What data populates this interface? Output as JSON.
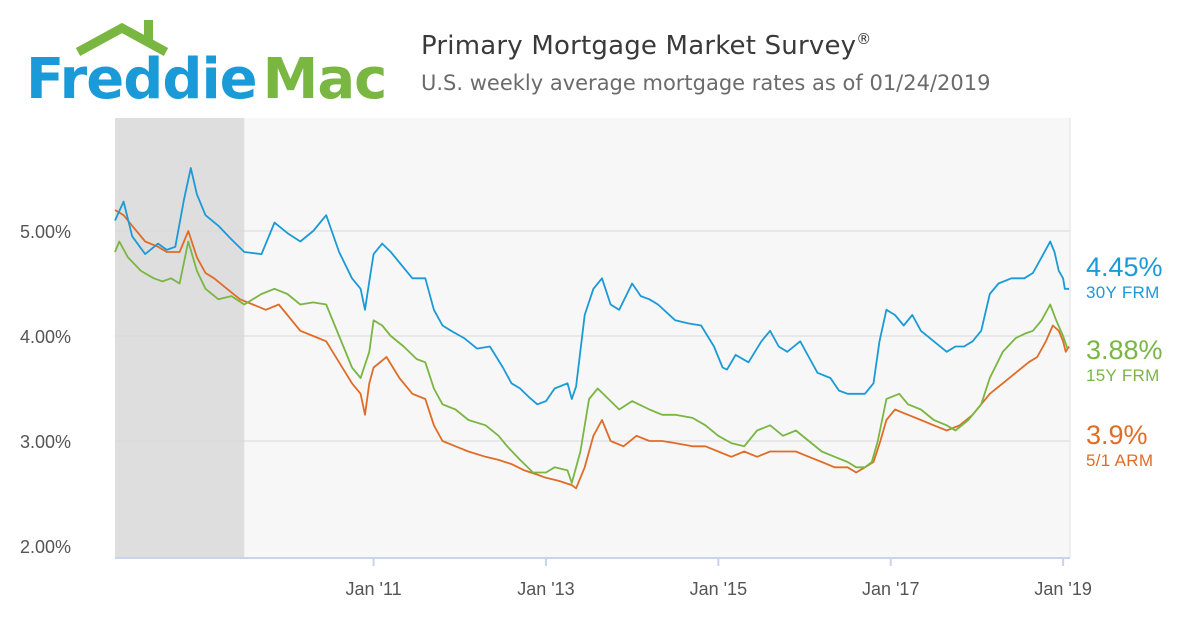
{
  "logo": {
    "text_part1": "Freddie",
    "text_part2": "Mac",
    "colors": {
      "freddie": "#1a9ad6",
      "mac": "#7ab642",
      "roof": "#7ab642"
    }
  },
  "header": {
    "title": "Primary Mortgage Market Survey",
    "title_mark": "®",
    "subtitle": "U.S. weekly average mortgage rates as of 01/24/2019"
  },
  "chart_data": {
    "type": "line",
    "title": "Primary Mortgage Market Survey",
    "subtitle": "U.S. weekly average mortgage rates as of 01/24/2019",
    "xlabel": "",
    "ylabel": "",
    "xlim": [
      2008.0,
      2019.08
    ],
    "ylim": [
      2.0,
      6.0
    ],
    "yticks": [
      {
        "value": 2.0,
        "label": "2.00%"
      },
      {
        "value": 3.0,
        "label": "3.00%"
      },
      {
        "value": 4.0,
        "label": "4.00%"
      },
      {
        "value": 5.0,
        "label": "5.00%"
      }
    ],
    "xticks": [
      {
        "value": 2011.0,
        "label": "Jan '11"
      },
      {
        "value": 2013.0,
        "label": "Jan '13"
      },
      {
        "value": 2015.0,
        "label": "Jan '15"
      },
      {
        "value": 2017.0,
        "label": "Jan '17"
      },
      {
        "value": 2019.0,
        "label": "Jan '19"
      }
    ],
    "shaded_period": [
      2008.0,
      2009.5
    ],
    "grid": true,
    "legend": "right-end labels",
    "series": [
      {
        "name": "30Y FRM",
        "end_label": "4.45%",
        "color": "#1a9ad6",
        "points": [
          [
            2008.0,
            5.1
          ],
          [
            2008.1,
            5.28
          ],
          [
            2008.2,
            4.95
          ],
          [
            2008.35,
            4.78
          ],
          [
            2008.5,
            4.88
          ],
          [
            2008.6,
            4.82
          ],
          [
            2008.7,
            4.85
          ],
          [
            2008.8,
            5.3
          ],
          [
            2008.88,
            5.6
          ],
          [
            2008.95,
            5.35
          ],
          [
            2009.05,
            5.15
          ],
          [
            2009.2,
            5.05
          ],
          [
            2009.35,
            4.92
          ],
          [
            2009.5,
            4.8
          ],
          [
            2009.7,
            4.78
          ],
          [
            2009.85,
            5.08
          ],
          [
            2010.0,
            4.98
          ],
          [
            2010.15,
            4.9
          ],
          [
            2010.3,
            5.0
          ],
          [
            2010.45,
            5.15
          ],
          [
            2010.6,
            4.8
          ],
          [
            2010.75,
            4.55
          ],
          [
            2010.85,
            4.45
          ],
          [
            2010.9,
            4.25
          ],
          [
            2010.95,
            4.52
          ],
          [
            2011.0,
            4.78
          ],
          [
            2011.1,
            4.88
          ],
          [
            2011.2,
            4.8
          ],
          [
            2011.3,
            4.7
          ],
          [
            2011.45,
            4.55
          ],
          [
            2011.6,
            4.55
          ],
          [
            2011.7,
            4.25
          ],
          [
            2011.8,
            4.1
          ],
          [
            2011.9,
            4.05
          ],
          [
            2012.05,
            3.98
          ],
          [
            2012.2,
            3.88
          ],
          [
            2012.35,
            3.9
          ],
          [
            2012.5,
            3.7
          ],
          [
            2012.6,
            3.55
          ],
          [
            2012.7,
            3.5
          ],
          [
            2012.8,
            3.42
          ],
          [
            2012.9,
            3.35
          ],
          [
            2013.0,
            3.38
          ],
          [
            2013.1,
            3.5
          ],
          [
            2013.25,
            3.55
          ],
          [
            2013.3,
            3.4
          ],
          [
            2013.35,
            3.52
          ],
          [
            2013.45,
            4.2
          ],
          [
            2013.55,
            4.45
          ],
          [
            2013.65,
            4.55
          ],
          [
            2013.75,
            4.3
          ],
          [
            2013.85,
            4.25
          ],
          [
            2014.0,
            4.5
          ],
          [
            2014.1,
            4.38
          ],
          [
            2014.2,
            4.35
          ],
          [
            2014.3,
            4.3
          ],
          [
            2014.5,
            4.15
          ],
          [
            2014.65,
            4.12
          ],
          [
            2014.8,
            4.1
          ],
          [
            2014.95,
            3.9
          ],
          [
            2015.05,
            3.7
          ],
          [
            2015.1,
            3.68
          ],
          [
            2015.2,
            3.82
          ],
          [
            2015.35,
            3.75
          ],
          [
            2015.5,
            3.95
          ],
          [
            2015.6,
            4.05
          ],
          [
            2015.7,
            3.9
          ],
          [
            2015.8,
            3.85
          ],
          [
            2015.95,
            3.95
          ],
          [
            2016.05,
            3.8
          ],
          [
            2016.15,
            3.65
          ],
          [
            2016.3,
            3.6
          ],
          [
            2016.4,
            3.48
          ],
          [
            2016.5,
            3.45
          ],
          [
            2016.6,
            3.45
          ],
          [
            2016.7,
            3.45
          ],
          [
            2016.8,
            3.55
          ],
          [
            2016.87,
            3.95
          ],
          [
            2016.95,
            4.25
          ],
          [
            2017.05,
            4.2
          ],
          [
            2017.15,
            4.1
          ],
          [
            2017.25,
            4.2
          ],
          [
            2017.35,
            4.05
          ],
          [
            2017.5,
            3.95
          ],
          [
            2017.65,
            3.85
          ],
          [
            2017.75,
            3.9
          ],
          [
            2017.85,
            3.9
          ],
          [
            2017.95,
            3.95
          ],
          [
            2018.05,
            4.05
          ],
          [
            2018.15,
            4.4
          ],
          [
            2018.25,
            4.5
          ],
          [
            2018.4,
            4.55
          ],
          [
            2018.55,
            4.55
          ],
          [
            2018.65,
            4.6
          ],
          [
            2018.75,
            4.75
          ],
          [
            2018.85,
            4.9
          ],
          [
            2018.9,
            4.8
          ],
          [
            2018.95,
            4.62
          ],
          [
            2019.0,
            4.55
          ],
          [
            2019.02,
            4.45
          ],
          [
            2019.07,
            4.45
          ]
        ]
      },
      {
        "name": "15Y FRM",
        "end_label": "3.88%",
        "color": "#7ab642",
        "points": [
          [
            2008.0,
            4.8
          ],
          [
            2008.05,
            4.9
          ],
          [
            2008.15,
            4.75
          ],
          [
            2008.3,
            4.62
          ],
          [
            2008.45,
            4.55
          ],
          [
            2008.55,
            4.52
          ],
          [
            2008.65,
            4.55
          ],
          [
            2008.75,
            4.5
          ],
          [
            2008.85,
            4.9
          ],
          [
            2008.95,
            4.62
          ],
          [
            2009.05,
            4.45
          ],
          [
            2009.2,
            4.35
          ],
          [
            2009.35,
            4.38
          ],
          [
            2009.5,
            4.3
          ],
          [
            2009.7,
            4.4
          ],
          [
            2009.85,
            4.45
          ],
          [
            2010.0,
            4.4
          ],
          [
            2010.15,
            4.3
          ],
          [
            2010.3,
            4.32
          ],
          [
            2010.45,
            4.3
          ],
          [
            2010.6,
            4.0
          ],
          [
            2010.75,
            3.7
          ],
          [
            2010.85,
            3.6
          ],
          [
            2010.95,
            3.85
          ],
          [
            2011.0,
            4.15
          ],
          [
            2011.1,
            4.1
          ],
          [
            2011.2,
            4.0
          ],
          [
            2011.35,
            3.9
          ],
          [
            2011.5,
            3.78
          ],
          [
            2011.6,
            3.75
          ],
          [
            2011.7,
            3.5
          ],
          [
            2011.8,
            3.35
          ],
          [
            2011.95,
            3.3
          ],
          [
            2012.1,
            3.2
          ],
          [
            2012.3,
            3.15
          ],
          [
            2012.45,
            3.05
          ],
          [
            2012.55,
            2.95
          ],
          [
            2012.7,
            2.82
          ],
          [
            2012.85,
            2.7
          ],
          [
            2013.0,
            2.7
          ],
          [
            2013.1,
            2.75
          ],
          [
            2013.25,
            2.72
          ],
          [
            2013.3,
            2.6
          ],
          [
            2013.4,
            2.9
          ],
          [
            2013.5,
            3.4
          ],
          [
            2013.6,
            3.5
          ],
          [
            2013.7,
            3.42
          ],
          [
            2013.85,
            3.3
          ],
          [
            2014.0,
            3.38
          ],
          [
            2014.2,
            3.3
          ],
          [
            2014.35,
            3.25
          ],
          [
            2014.5,
            3.25
          ],
          [
            2014.7,
            3.22
          ],
          [
            2014.85,
            3.15
          ],
          [
            2015.0,
            3.05
          ],
          [
            2015.15,
            2.98
          ],
          [
            2015.3,
            2.95
          ],
          [
            2015.45,
            3.1
          ],
          [
            2015.6,
            3.15
          ],
          [
            2015.75,
            3.05
          ],
          [
            2015.9,
            3.1
          ],
          [
            2016.05,
            3.0
          ],
          [
            2016.2,
            2.9
          ],
          [
            2016.35,
            2.85
          ],
          [
            2016.5,
            2.8
          ],
          [
            2016.6,
            2.75
          ],
          [
            2016.7,
            2.75
          ],
          [
            2016.78,
            2.8
          ],
          [
            2016.85,
            3.0
          ],
          [
            2016.95,
            3.4
          ],
          [
            2017.1,
            3.45
          ],
          [
            2017.2,
            3.35
          ],
          [
            2017.35,
            3.3
          ],
          [
            2017.5,
            3.2
          ],
          [
            2017.65,
            3.15
          ],
          [
            2017.75,
            3.1
          ],
          [
            2017.9,
            3.2
          ],
          [
            2018.05,
            3.35
          ],
          [
            2018.15,
            3.6
          ],
          [
            2018.3,
            3.85
          ],
          [
            2018.45,
            3.98
          ],
          [
            2018.55,
            4.02
          ],
          [
            2018.65,
            4.05
          ],
          [
            2018.75,
            4.15
          ],
          [
            2018.85,
            4.3
          ],
          [
            2018.92,
            4.15
          ],
          [
            2019.0,
            4.0
          ],
          [
            2019.05,
            3.88
          ]
        ]
      },
      {
        "name": "5/1 ARM",
        "end_label": "3.9%",
        "color": "#e06c27",
        "points": [
          [
            2008.0,
            5.2
          ],
          [
            2008.1,
            5.15
          ],
          [
            2008.2,
            5.05
          ],
          [
            2008.35,
            4.9
          ],
          [
            2008.5,
            4.85
          ],
          [
            2008.6,
            4.8
          ],
          [
            2008.75,
            4.8
          ],
          [
            2008.85,
            5.0
          ],
          [
            2008.95,
            4.75
          ],
          [
            2009.05,
            4.6
          ],
          [
            2009.15,
            4.55
          ],
          [
            2009.3,
            4.45
          ],
          [
            2009.45,
            4.35
          ],
          [
            2009.6,
            4.3
          ],
          [
            2009.75,
            4.25
          ],
          [
            2009.9,
            4.3
          ],
          [
            2010.0,
            4.2
          ],
          [
            2010.15,
            4.05
          ],
          [
            2010.3,
            4.0
          ],
          [
            2010.45,
            3.95
          ],
          [
            2010.6,
            3.75
          ],
          [
            2010.75,
            3.55
          ],
          [
            2010.85,
            3.45
          ],
          [
            2010.9,
            3.25
          ],
          [
            2010.95,
            3.55
          ],
          [
            2011.0,
            3.7
          ],
          [
            2011.15,
            3.8
          ],
          [
            2011.3,
            3.6
          ],
          [
            2011.45,
            3.45
          ],
          [
            2011.6,
            3.4
          ],
          [
            2011.7,
            3.15
          ],
          [
            2011.8,
            3.0
          ],
          [
            2011.95,
            2.95
          ],
          [
            2012.1,
            2.9
          ],
          [
            2012.3,
            2.85
          ],
          [
            2012.45,
            2.82
          ],
          [
            2012.6,
            2.78
          ],
          [
            2012.75,
            2.72
          ],
          [
            2012.9,
            2.68
          ],
          [
            2013.0,
            2.65
          ],
          [
            2013.15,
            2.62
          ],
          [
            2013.3,
            2.58
          ],
          [
            2013.35,
            2.55
          ],
          [
            2013.45,
            2.75
          ],
          [
            2013.55,
            3.05
          ],
          [
            2013.65,
            3.2
          ],
          [
            2013.75,
            3.0
          ],
          [
            2013.9,
            2.95
          ],
          [
            2014.05,
            3.05
          ],
          [
            2014.2,
            3.0
          ],
          [
            2014.35,
            3.0
          ],
          [
            2014.5,
            2.98
          ],
          [
            2014.7,
            2.95
          ],
          [
            2014.85,
            2.95
          ],
          [
            2015.0,
            2.9
          ],
          [
            2015.15,
            2.85
          ],
          [
            2015.3,
            2.9
          ],
          [
            2015.45,
            2.85
          ],
          [
            2015.6,
            2.9
          ],
          [
            2015.75,
            2.9
          ],
          [
            2015.9,
            2.9
          ],
          [
            2016.05,
            2.85
          ],
          [
            2016.2,
            2.8
          ],
          [
            2016.35,
            2.75
          ],
          [
            2016.5,
            2.75
          ],
          [
            2016.6,
            2.7
          ],
          [
            2016.7,
            2.75
          ],
          [
            2016.8,
            2.8
          ],
          [
            2016.88,
            3.0
          ],
          [
            2016.95,
            3.2
          ],
          [
            2017.05,
            3.3
          ],
          [
            2017.2,
            3.25
          ],
          [
            2017.35,
            3.2
          ],
          [
            2017.5,
            3.15
          ],
          [
            2017.65,
            3.1
          ],
          [
            2017.8,
            3.15
          ],
          [
            2017.95,
            3.25
          ],
          [
            2018.05,
            3.35
          ],
          [
            2018.15,
            3.45
          ],
          [
            2018.3,
            3.55
          ],
          [
            2018.45,
            3.65
          ],
          [
            2018.6,
            3.75
          ],
          [
            2018.7,
            3.8
          ],
          [
            2018.8,
            3.95
          ],
          [
            2018.88,
            4.1
          ],
          [
            2018.95,
            4.05
          ],
          [
            2019.0,
            3.95
          ],
          [
            2019.03,
            3.85
          ],
          [
            2019.07,
            3.9
          ]
        ]
      }
    ]
  }
}
